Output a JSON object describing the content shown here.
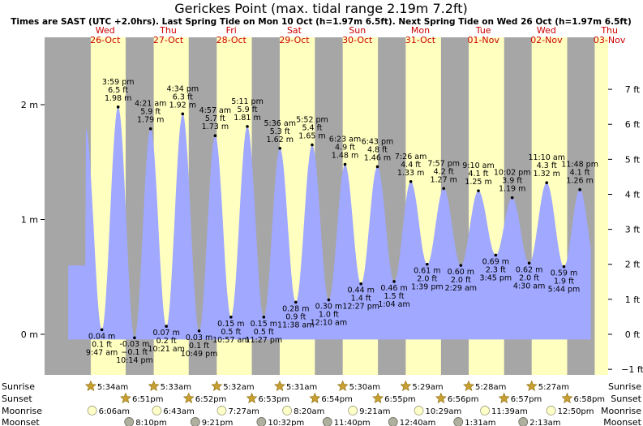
{
  "title": "Gerickes Point (max. tidal range 2.19m 7.2ft)",
  "subtitle": "Times are SAST (UTC +2.0hrs). Last Spring Tide on Mon 10 Oct (h=1.97m 6.5ft). Next Spring Tide on Wed 26 Oct (h=1.97m 6.5ft)",
  "colors": {
    "night": "#a6a6a6",
    "day": "#ffffc0",
    "tide": "#a0a8ff",
    "tide_dot": "#000000",
    "day_label": "#cc0000",
    "sun_icon": "#c8a030",
    "moon_rise_icon": "#ffffc8",
    "moon_set_icon": "#b0b0a0"
  },
  "days": [
    {
      "weekday": "Wed",
      "date": "26-Oct"
    },
    {
      "weekday": "Thu",
      "date": "27-Oct"
    },
    {
      "weekday": "Fri",
      "date": "28-Oct"
    },
    {
      "weekday": "Sat",
      "date": "29-Oct"
    },
    {
      "weekday": "Sun",
      "date": "30-Oct"
    },
    {
      "weekday": "Mon",
      "date": "31-Oct"
    },
    {
      "weekday": "Tue",
      "date": "01-Nov"
    },
    {
      "weekday": "Wed",
      "date": "02-Nov"
    },
    {
      "weekday": "Thu",
      "date": "03-Nov"
    }
  ],
  "axis_left": {
    "unit": "m",
    "ticks": [
      {
        "value": 0,
        "label": "0 m"
      },
      {
        "value": 1,
        "label": "1 m"
      },
      {
        "value": 2,
        "label": "2 m"
      }
    ]
  },
  "axis_right": {
    "unit": "ft",
    "ticks": [
      {
        "value": -1,
        "label": "−1 ft"
      },
      {
        "value": 0,
        "label": "0 ft"
      },
      {
        "value": 1,
        "label": "1 ft"
      },
      {
        "value": 2,
        "label": "2 ft"
      },
      {
        "value": 3,
        "label": "3 ft"
      },
      {
        "value": 4,
        "label": "4 ft"
      },
      {
        "value": 5,
        "label": "5 ft"
      },
      {
        "value": 6,
        "label": "6 ft"
      },
      {
        "value": 7,
        "label": "7 ft"
      }
    ]
  },
  "chart_data": {
    "type": "area",
    "time_unit": "hours from 00:00 Wed 26-Oct",
    "y_unit": "m",
    "ylim": [
      -0.25,
      2.45
    ],
    "xlim": [
      -3,
      216
    ],
    "tides": [
      {
        "time": 9.783,
        "m": 0.04,
        "ft": "0.1 ft",
        "label": "9:47 am",
        "type": "low"
      },
      {
        "time": 15.983,
        "m": 1.98,
        "ft": "6.5 ft",
        "label": "3:59 pm",
        "type": "high"
      },
      {
        "time": 22.233,
        "m": -0.03,
        "ft": "−0.1 ft",
        "label": "10:14 pm",
        "type": "low"
      },
      {
        "time": 28.35,
        "m": 1.79,
        "ft": "5.9 ft",
        "label": "4:21 am",
        "type": "high"
      },
      {
        "time": 34.35,
        "m": 0.07,
        "ft": "0.2 ft",
        "label": "10:21 am",
        "type": "low"
      },
      {
        "time": 40.567,
        "m": 1.92,
        "ft": "6.3 ft",
        "label": "4:34 pm",
        "type": "high"
      },
      {
        "time": 46.817,
        "m": 0.03,
        "ft": "0.1 ft",
        "label": "10:49 pm",
        "type": "low"
      },
      {
        "time": 52.95,
        "m": 1.73,
        "ft": "5.7 ft",
        "label": "4:57 am",
        "type": "high"
      },
      {
        "time": 58.95,
        "m": 0.15,
        "ft": "0.5 ft",
        "label": "10:57 am",
        "type": "low"
      },
      {
        "time": 65.183,
        "m": 1.81,
        "ft": "5.9 ft",
        "label": "5:11 pm",
        "type": "high"
      },
      {
        "time": 71.45,
        "m": 0.15,
        "ft": "0.5 ft",
        "label": "11:27 pm",
        "type": "low"
      },
      {
        "time": 77.6,
        "m": 1.62,
        "ft": "5.3 ft",
        "label": "5:36 am",
        "type": "high"
      },
      {
        "time": 83.633,
        "m": 0.28,
        "ft": "0.9 ft",
        "label": "11:38 am",
        "type": "low"
      },
      {
        "time": 89.867,
        "m": 1.65,
        "ft": "5.4 ft",
        "label": "5:52 pm",
        "type": "high"
      },
      {
        "time": 96.167,
        "m": 0.3,
        "ft": "1.0 ft",
        "label": "12:10 am",
        "type": "low"
      },
      {
        "time": 102.383,
        "m": 1.48,
        "ft": "4.9 ft",
        "label": "6:23 am",
        "type": "high"
      },
      {
        "time": 108.45,
        "m": 0.44,
        "ft": "1.4 ft",
        "label": "12:27 pm",
        "type": "low"
      },
      {
        "time": 114.717,
        "m": 1.46,
        "ft": "4.8 ft",
        "label": "6:43 pm",
        "type": "high"
      },
      {
        "time": 121.067,
        "m": 0.46,
        "ft": "1.5 ft",
        "label": "1:04 am",
        "type": "low"
      },
      {
        "time": 127.433,
        "m": 1.33,
        "ft": "4.4 ft",
        "label": "7:26 am",
        "type": "high"
      },
      {
        "time": 133.65,
        "m": 0.61,
        "ft": "2.0 ft",
        "label": "1:39 pm",
        "type": "low"
      },
      {
        "time": 139.95,
        "m": 1.27,
        "ft": "4.2 ft",
        "label": "7:57 pm",
        "type": "high"
      },
      {
        "time": 146.483,
        "m": 0.6,
        "ft": "2.0 ft",
        "label": "2:29 am",
        "type": "low"
      },
      {
        "time": 153.167,
        "m": 1.25,
        "ft": "4.1 ft",
        "label": "9:10 am",
        "type": "high"
      },
      {
        "time": 159.75,
        "m": 0.69,
        "ft": "2.3 ft",
        "label": "3:45 pm",
        "type": "low"
      },
      {
        "time": 166.033,
        "m": 1.19,
        "ft": "3.9 ft",
        "label": "10:02 pm",
        "type": "high"
      },
      {
        "time": 172.5,
        "m": 0.62,
        "ft": "2.0 ft",
        "label": "4:30 am",
        "type": "low"
      },
      {
        "time": 179.167,
        "m": 1.32,
        "ft": "4.3 ft",
        "label": "11:10 am",
        "type": "high"
      },
      {
        "time": 185.733,
        "m": 0.59,
        "ft": "1.9 ft",
        "label": "5:44 pm",
        "type": "low"
      },
      {
        "time": 191.8,
        "m": 1.26,
        "ft": "4.1 ft",
        "label": "11:48 pm",
        "type": "high"
      }
    ]
  },
  "astro": {
    "row_labels": {
      "sunrise": "Sunrise",
      "sunset": "Sunset",
      "moonrise": "Moonrise",
      "moonset": "Moonset"
    },
    "sunrise": [
      {
        "time": 5.567,
        "label": "5:34am"
      },
      {
        "time": 29.55,
        "label": "5:33am"
      },
      {
        "time": 53.533,
        "label": "5:32am"
      },
      {
        "time": 77.517,
        "label": "5:31am"
      },
      {
        "time": 101.5,
        "label": "5:30am"
      },
      {
        "time": 125.483,
        "label": "5:29am"
      },
      {
        "time": 149.467,
        "label": "5:28am"
      },
      {
        "time": 173.45,
        "label": "5:27am"
      }
    ],
    "sunset": [
      {
        "time": 18.85,
        "label": "6:51pm"
      },
      {
        "time": 42.867,
        "label": "6:52pm"
      },
      {
        "time": 66.883,
        "label": "6:53pm"
      },
      {
        "time": 90.9,
        "label": "6:54pm"
      },
      {
        "time": 114.917,
        "label": "6:55pm"
      },
      {
        "time": 138.933,
        "label": "6:56pm"
      },
      {
        "time": 162.95,
        "label": "6:57pm"
      },
      {
        "time": 186.967,
        "label": "6:58pm"
      }
    ],
    "moonrise": [
      {
        "time": 6.1,
        "label": "6:06am"
      },
      {
        "time": 30.717,
        "label": "6:43am"
      },
      {
        "time": 55.45,
        "label": "7:27am"
      },
      {
        "time": 80.333,
        "label": "8:20am"
      },
      {
        "time": 105.35,
        "label": "9:21am"
      },
      {
        "time": 130.483,
        "label": "10:29am"
      },
      {
        "time": 155.65,
        "label": "11:39am"
      },
      {
        "time": 180.833,
        "label": "12:50pm"
      }
    ],
    "moonset": [
      {
        "time": 20.167,
        "label": "8:10pm"
      },
      {
        "time": 45.35,
        "label": "9:21pm"
      },
      {
        "time": 70.533,
        "label": "10:32pm"
      },
      {
        "time": 95.667,
        "label": "11:40pm"
      },
      {
        "time": 120.667,
        "label": "12:40am"
      },
      {
        "time": 145.517,
        "label": "1:31am"
      },
      {
        "time": 170.217,
        "label": "2:13am"
      }
    ]
  }
}
